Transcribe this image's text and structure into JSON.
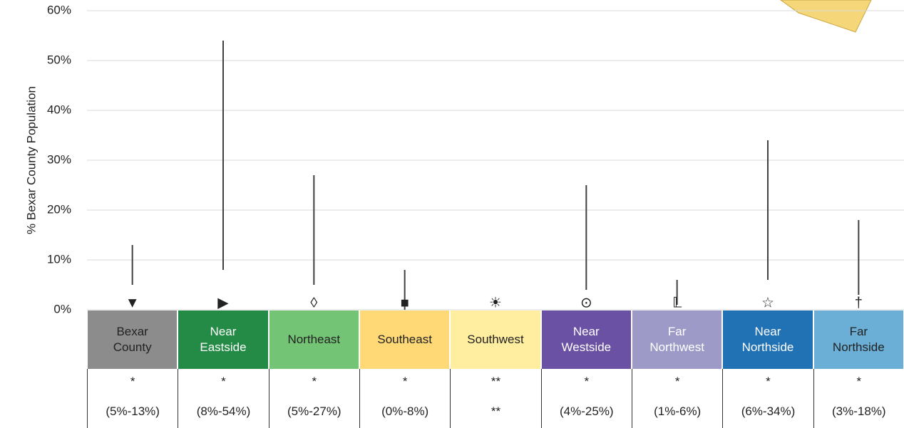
{
  "chart_data": {
    "type": "range",
    "y_axis_label": "% Bexar County Population",
    "categories": [
      "Bexar County",
      "Near Eastside",
      "Northeast",
      "Southeast",
      "Southwest",
      "Near Westside",
      "Far Northwest",
      "Near Northside",
      "Far Northside"
    ],
    "colors": [
      "#8c8c8c",
      "#238b45",
      "#74c476",
      "#fed976",
      "#ffeda0",
      "#6a51a3",
      "#9e9ac8",
      "#2171b5",
      "#6baed6"
    ],
    "label_colors": [
      "#222222",
      "#ffffff",
      "#222222",
      "#222222",
      "#222222",
      "#ffffff",
      "#ffffff",
      "#ffffff",
      "#222222"
    ],
    "markers": [
      "▼",
      "▶",
      "◊",
      "■",
      "☀",
      "⊙",
      "𝕃",
      "☆",
      "†"
    ],
    "low": [
      5,
      8,
      5,
      0,
      null,
      4,
      1,
      6,
      3
    ],
    "high": [
      13,
      54,
      27,
      8,
      null,
      25,
      6,
      34,
      18
    ],
    "stars": [
      "*",
      "*",
      "*",
      "*",
      "**",
      "*",
      "*",
      "*",
      "*"
    ],
    "range_labels": [
      "(5%-13%)",
      "(8%-54%)",
      "(5%-27%)",
      "(0%-8%)",
      "**",
      "(4%-25%)",
      "(1%-6%)",
      "(6%-34%)",
      "(3%-18%)"
    ],
    "line_color": "#404040",
    "ylim": [
      0,
      60
    ],
    "yticks": [
      {
        "value": 0,
        "label": "0%"
      },
      {
        "value": 10,
        "label": "10%"
      },
      {
        "value": 20,
        "label": "20%"
      },
      {
        "value": 30,
        "label": "30%"
      },
      {
        "value": 40,
        "label": "40%"
      },
      {
        "value": 50,
        "label": "50%"
      },
      {
        "value": 60,
        "label": "60%"
      }
    ],
    "grid": true
  }
}
